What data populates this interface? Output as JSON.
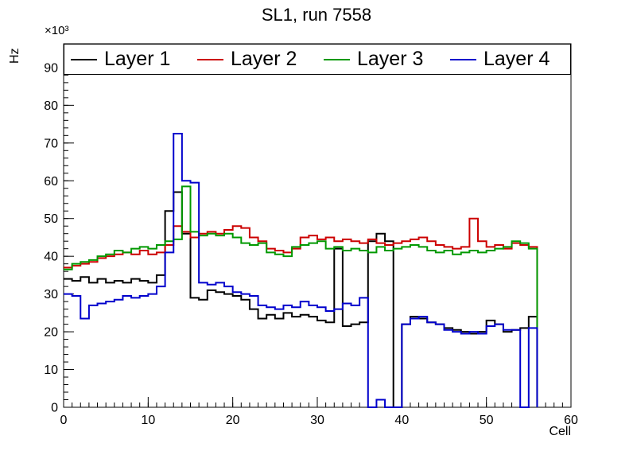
{
  "chart_data": {
    "type": "line",
    "subtype": "step-histogram",
    "title": "SL1, run 7558",
    "xlabel": "Cell",
    "ylabel": "Hz",
    "y_exponent_label": "×10³",
    "xlim": [
      0,
      60
    ],
    "ylim": [
      0,
      96.3
    ],
    "x_ticks": [
      0,
      10,
      20,
      30,
      40,
      50,
      60
    ],
    "y_ticks": [
      0,
      10,
      20,
      30,
      40,
      50,
      60,
      70,
      80,
      90
    ],
    "x_minor_step": 1,
    "y_minor_step": 2,
    "grid": false,
    "legend_position": "top",
    "bin_start": 0,
    "bin_width": 1,
    "series": [
      {
        "name": "Layer 1",
        "color": "#000000",
        "values": [
          34,
          33.5,
          34.5,
          33,
          34,
          33,
          33.5,
          33,
          34,
          33.5,
          33,
          35,
          52,
          57,
          46,
          29,
          28.5,
          31,
          30.5,
          30,
          29.5,
          28.5,
          26,
          23.5,
          24.5,
          23.5,
          25,
          24,
          24.5,
          24,
          23,
          22.5,
          42,
          21.5,
          22,
          22.5,
          44,
          46,
          44,
          0,
          22,
          24,
          23.5,
          22.5,
          22,
          21,
          20.5,
          20,
          19.5,
          20,
          23,
          22,
          20,
          20.5,
          21,
          24
        ]
      },
      {
        "name": "Layer 2",
        "color": "#cc0000",
        "values": [
          37,
          37.5,
          38,
          38.5,
          39.5,
          40,
          40.5,
          41,
          40.5,
          41.5,
          40.5,
          41,
          43,
          48,
          46.5,
          45,
          46,
          46.5,
          46,
          47,
          48,
          47.5,
          45,
          44,
          42,
          41.5,
          41,
          42,
          45,
          45.5,
          44.5,
          45,
          44,
          44.5,
          44,
          43.5,
          44.5,
          43.5,
          43,
          43.5,
          44,
          44.5,
          45,
          44,
          43,
          42.5,
          42,
          42.5,
          50,
          44,
          42.5,
          43,
          42,
          43.5,
          43,
          42.5
        ]
      },
      {
        "name": "Layer 3",
        "color": "#009900",
        "values": [
          36.5,
          38,
          38.5,
          39,
          40,
          40.5,
          41.5,
          41,
          42,
          42.5,
          42,
          43,
          44,
          44.5,
          58.5,
          46.5,
          45.5,
          46,
          45.5,
          46,
          45,
          43.5,
          43,
          43.5,
          41,
          40.5,
          40,
          42.5,
          43,
          43.5,
          44,
          42,
          42.5,
          41.5,
          42,
          41.5,
          41,
          42.5,
          41.5,
          42,
          42.5,
          43,
          42.5,
          41.5,
          41,
          41.5,
          40.5,
          41,
          41.5,
          41,
          41.5,
          42,
          42.5,
          44,
          43.5,
          42
        ]
      },
      {
        "name": "Layer 4",
        "color": "#0000cc",
        "values": [
          30,
          29.5,
          23.5,
          27,
          27.5,
          28,
          28.5,
          29.5,
          29,
          29.5,
          30,
          32,
          41,
          72.5,
          60,
          59.5,
          33,
          32.5,
          33,
          32,
          30.5,
          30,
          29.5,
          27,
          26.5,
          26,
          27,
          26.5,
          28,
          27,
          26.5,
          25.5,
          26,
          27.5,
          27,
          29,
          0,
          2,
          0,
          0,
          22,
          23.5,
          24,
          22.5,
          22,
          20.5,
          20,
          19.5,
          20,
          19.5,
          21.5,
          22,
          20.5,
          20.5,
          0,
          21
        ]
      }
    ]
  }
}
